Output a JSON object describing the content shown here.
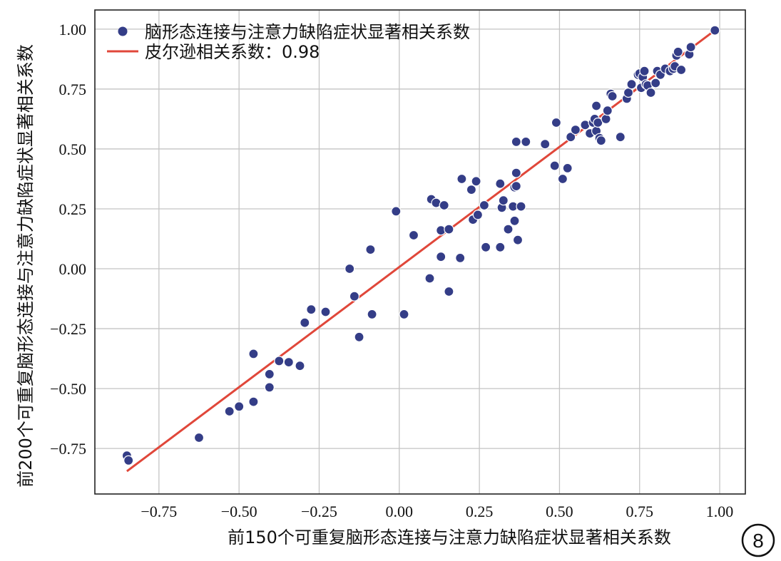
{
  "chart_data": {
    "type": "scatter",
    "title": "",
    "xlabel": "前150个可重复脑形态连接与注意力缺陷症状显著相关系数",
    "ylabel": "前200个可重复脑形态连接与注意力缺陷症状显著相关系数",
    "xlim": [
      -0.95,
      1.08
    ],
    "ylim": [
      -0.94,
      1.08
    ],
    "xticks": [
      "−0.75",
      "−0.50",
      "−0.25",
      "0.00",
      "0.25",
      "0.50",
      "0.75",
      "1.00"
    ],
    "xtick_values": [
      -0.75,
      -0.5,
      -0.25,
      0.0,
      0.25,
      0.5,
      0.75,
      1.0
    ],
    "yticks": [
      "1.00",
      "0.75",
      "0.50",
      "0.25",
      "0.00",
      "−0.25",
      "−0.50",
      "−0.75"
    ],
    "ytick_values": [
      1.0,
      0.75,
      0.5,
      0.25,
      0.0,
      -0.25,
      -0.5,
      -0.75
    ],
    "grid": true,
    "legend_position": "top-left",
    "series": [
      {
        "name": "脑形态连接与注意力缺陷症状显著相关系数",
        "kind": "scatter",
        "color": "#343d87",
        "points": [
          [
            -0.85,
            -0.78
          ],
          [
            -0.845,
            -0.8
          ],
          [
            -0.625,
            -0.705
          ],
          [
            -0.53,
            -0.595
          ],
          [
            -0.5,
            -0.575
          ],
          [
            -0.455,
            -0.555
          ],
          [
            -0.455,
            -0.355
          ],
          [
            -0.405,
            -0.44
          ],
          [
            -0.405,
            -0.495
          ],
          [
            -0.375,
            -0.385
          ],
          [
            -0.345,
            -0.39
          ],
          [
            -0.31,
            -0.405
          ],
          [
            -0.295,
            -0.225
          ],
          [
            -0.275,
            -0.17
          ],
          [
            -0.23,
            -0.18
          ],
          [
            -0.155,
            0.0
          ],
          [
            -0.14,
            -0.115
          ],
          [
            -0.125,
            -0.285
          ],
          [
            -0.09,
            0.08
          ],
          [
            -0.085,
            -0.19
          ],
          [
            -0.01,
            0.24
          ],
          [
            0.015,
            -0.19
          ],
          [
            0.045,
            0.14
          ],
          [
            0.095,
            -0.04
          ],
          [
            0.1,
            0.29
          ],
          [
            0.115,
            0.275
          ],
          [
            0.13,
            0.16
          ],
          [
            0.13,
            0.05
          ],
          [
            0.14,
            0.265
          ],
          [
            0.155,
            -0.095
          ],
          [
            0.155,
            0.165
          ],
          [
            0.19,
            0.045
          ],
          [
            0.195,
            0.375
          ],
          [
            0.225,
            0.33
          ],
          [
            0.23,
            0.205
          ],
          [
            0.24,
            0.365
          ],
          [
            0.245,
            0.225
          ],
          [
            0.265,
            0.265
          ],
          [
            0.27,
            0.09
          ],
          [
            0.315,
            0.355
          ],
          [
            0.315,
            0.09
          ],
          [
            0.32,
            0.255
          ],
          [
            0.325,
            0.285
          ],
          [
            0.34,
            0.165
          ],
          [
            0.355,
            0.26
          ],
          [
            0.36,
            0.34
          ],
          [
            0.36,
            0.2
          ],
          [
            0.365,
            0.345
          ],
          [
            0.365,
            0.4
          ],
          [
            0.365,
            0.53
          ],
          [
            0.37,
            0.12
          ],
          [
            0.38,
            0.26
          ],
          [
            0.395,
            0.53
          ],
          [
            0.455,
            0.52
          ],
          [
            0.485,
            0.43
          ],
          [
            0.49,
            0.61
          ],
          [
            0.51,
            0.375
          ],
          [
            0.525,
            0.42
          ],
          [
            0.535,
            0.55
          ],
          [
            0.55,
            0.58
          ],
          [
            0.58,
            0.6
          ],
          [
            0.595,
            0.565
          ],
          [
            0.605,
            0.61
          ],
          [
            0.61,
            0.625
          ],
          [
            0.615,
            0.68
          ],
          [
            0.615,
            0.575
          ],
          [
            0.62,
            0.61
          ],
          [
            0.625,
            0.545
          ],
          [
            0.63,
            0.535
          ],
          [
            0.645,
            0.625
          ],
          [
            0.65,
            0.66
          ],
          [
            0.66,
            0.73
          ],
          [
            0.665,
            0.72
          ],
          [
            0.69,
            0.55
          ],
          [
            0.71,
            0.71
          ],
          [
            0.715,
            0.735
          ],
          [
            0.725,
            0.77
          ],
          [
            0.745,
            0.81
          ],
          [
            0.75,
            0.815
          ],
          [
            0.755,
            0.755
          ],
          [
            0.76,
            0.8
          ],
          [
            0.765,
            0.825
          ],
          [
            0.77,
            0.77
          ],
          [
            0.775,
            0.765
          ],
          [
            0.785,
            0.735
          ],
          [
            0.8,
            0.775
          ],
          [
            0.805,
            0.825
          ],
          [
            0.815,
            0.81
          ],
          [
            0.83,
            0.835
          ],
          [
            0.845,
            0.825
          ],
          [
            0.855,
            0.835
          ],
          [
            0.86,
            0.845
          ],
          [
            0.865,
            0.89
          ],
          [
            0.87,
            0.905
          ],
          [
            0.88,
            0.83
          ],
          [
            0.905,
            0.895
          ],
          [
            0.91,
            0.925
          ],
          [
            0.985,
            0.995
          ]
        ]
      },
      {
        "name": "皮尔逊相关系数：0.98",
        "kind": "line",
        "color": "#e0473a",
        "points": [
          [
            -0.85,
            -0.845
          ],
          [
            0.985,
            0.995
          ]
        ]
      }
    ],
    "badge": "8"
  }
}
